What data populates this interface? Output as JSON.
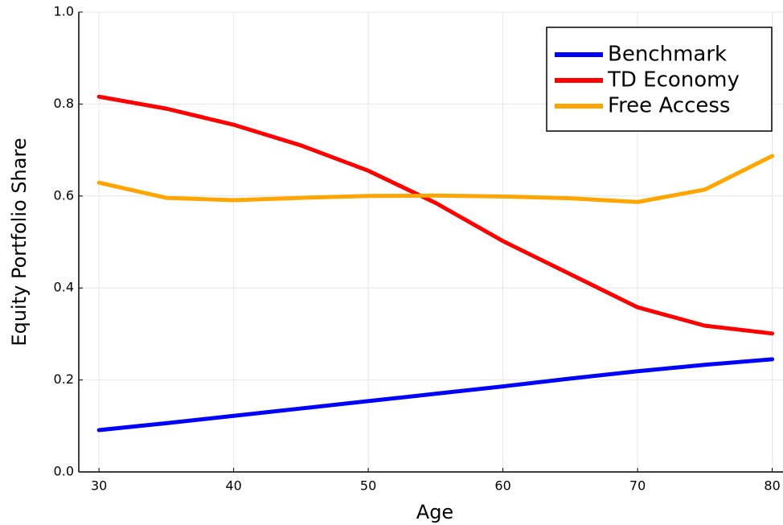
{
  "chart_data": {
    "type": "line",
    "x_label": "Age",
    "y_label": "Equity Portfolio Share",
    "x": [
      30,
      35,
      40,
      45,
      50,
      55,
      60,
      65,
      70,
      75,
      80
    ],
    "series": [
      {
        "name": "Benchmark",
        "color": "#0000ff",
        "values": [
          0.091,
          0.106,
          0.122,
          0.138,
          0.154,
          0.17,
          0.186,
          0.203,
          0.219,
          0.233,
          0.245
        ]
      },
      {
        "name": "TD Economy",
        "color": "#ff0000",
        "values": [
          0.816,
          0.79,
          0.755,
          0.71,
          0.655,
          0.585,
          0.502,
          0.43,
          0.358,
          0.318,
          0.301
        ]
      },
      {
        "name": "Free Access",
        "color": "#ffa500",
        "values": [
          0.629,
          0.596,
          0.591,
          0.596,
          0.6,
          0.601,
          0.599,
          0.595,
          0.587,
          0.614,
          0.687
        ]
      }
    ],
    "xlim": [
      28.5,
      80.8
    ],
    "xticks": [
      30,
      40,
      50,
      60,
      70,
      80
    ],
    "ylim": [
      0,
      1
    ],
    "yticks": [
      {
        "value": 0,
        "label": "0.0"
      },
      0.2,
      0.4,
      0.6,
      0.8,
      {
        "value": 1,
        "label": "1.0"
      }
    ],
    "grid": true,
    "legend": "top-right"
  }
}
